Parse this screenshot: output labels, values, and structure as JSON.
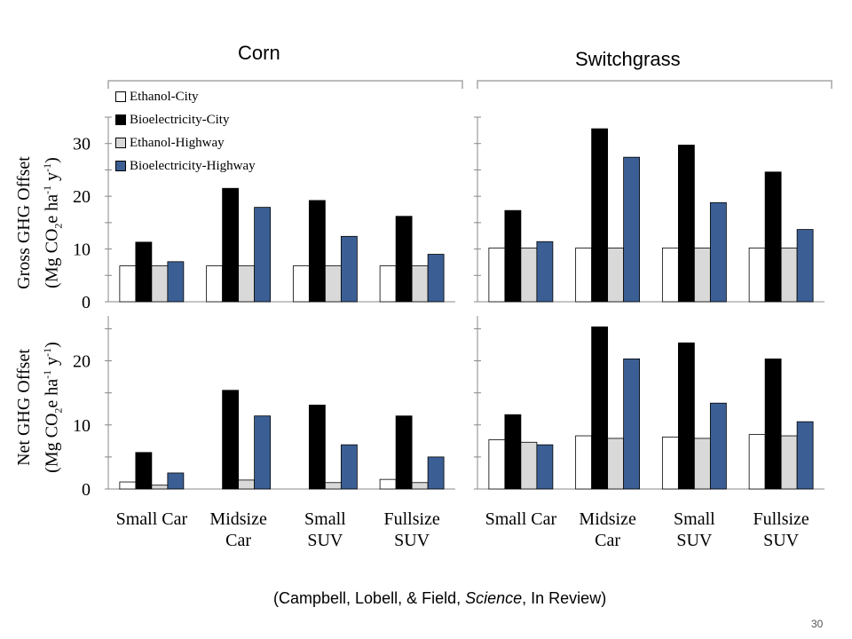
{
  "slide": {
    "group_titles": [
      "Corn",
      "Switchgrass"
    ],
    "citation": {
      "before": "(Campbell, Lobell, & Field, ",
      "italic": "Science",
      "after": ", In Review)"
    },
    "page_number": "30"
  },
  "legend": {
    "entries": [
      {
        "label": "Ethanol-City",
        "color": "#ffffff"
      },
      {
        "label": "Bioelectricity-City",
        "color": "#000000"
      },
      {
        "label": "Ethanol-Highway",
        "color": "#d9d9d9"
      },
      {
        "label": "Bioelectricity-Highway",
        "color": "#3b5f94"
      }
    ]
  },
  "y_labels": {
    "gross": {
      "line1": "Gross GHG Offset",
      "line2_pre": "(Mg CO",
      "sub": "2",
      "mid1": "e ha",
      "sup1": "-1",
      "mid2": " y",
      "sup2": "-1",
      "post": ")"
    },
    "net": {
      "line1": "Net GHG Offset",
      "line2_pre": "(Mg CO",
      "sub": "2",
      "mid1": "e ha",
      "sup1": "-1",
      "mid2": " y",
      "sup2": "-1",
      "post": ")"
    }
  },
  "chart_data": [
    {
      "type": "bar",
      "panel": "corn-gross",
      "group": "Corn",
      "categories": [
        [
          "Small Car"
        ],
        [
          "Midsize",
          "Car"
        ],
        [
          "Small",
          "SUV"
        ],
        [
          "Fullsize",
          "SUV"
        ]
      ],
      "series": [
        {
          "name": "Ethanol-City",
          "color": "#ffffff",
          "values": [
            6.8,
            6.8,
            6.8,
            6.8
          ]
        },
        {
          "name": "Bioelectricity-City",
          "color": "#000000",
          "values": [
            11.3,
            21.5,
            19.2,
            16.2
          ]
        },
        {
          "name": "Ethanol-Highway",
          "color": "#d9d9d9",
          "values": [
            6.8,
            6.8,
            6.8,
            6.8
          ]
        },
        {
          "name": "Bioelectricity-Highway",
          "color": "#3b5f94",
          "values": [
            7.6,
            17.9,
            12.4,
            9.0
          ]
        }
      ],
      "ylim": [
        0,
        35
      ],
      "yticks": [
        0,
        10,
        20,
        30
      ],
      "minor_step": 5,
      "show_tick_labels": true,
      "show_categories": false
    },
    {
      "type": "bar",
      "panel": "switchgrass-gross",
      "group": "Switchgrass",
      "categories": [
        [
          "Small Car"
        ],
        [
          "Midsize",
          "Car"
        ],
        [
          "Small",
          "SUV"
        ],
        [
          "Fullsize",
          "SUV"
        ]
      ],
      "series": [
        {
          "name": "Ethanol-City",
          "color": "#ffffff",
          "values": [
            10.2,
            10.2,
            10.2,
            10.2
          ]
        },
        {
          "name": "Bioelectricity-City",
          "color": "#000000",
          "values": [
            17.3,
            32.8,
            29.7,
            24.6
          ]
        },
        {
          "name": "Ethanol-Highway",
          "color": "#d9d9d9",
          "values": [
            10.2,
            10.2,
            10.2,
            10.2
          ]
        },
        {
          "name": "Bioelectricity-Highway",
          "color": "#3b5f94",
          "values": [
            11.4,
            27.4,
            18.8,
            13.7
          ]
        }
      ],
      "ylim": [
        0,
        35
      ],
      "yticks": [
        0,
        10,
        20,
        30
      ],
      "minor_step": 5,
      "show_tick_labels": false,
      "show_categories": false
    },
    {
      "type": "bar",
      "panel": "corn-net",
      "group": "Corn",
      "categories": [
        [
          "Small Car"
        ],
        [
          "Midsize",
          "Car"
        ],
        [
          "Small",
          "SUV"
        ],
        [
          "Fullsize",
          "SUV"
        ]
      ],
      "series": [
        {
          "name": "Ethanol-City",
          "color": "#ffffff",
          "values": [
            1.1,
            0,
            0,
            1.5
          ]
        },
        {
          "name": "Bioelectricity-City",
          "color": "#000000",
          "values": [
            5.7,
            15.4,
            13.1,
            11.4
          ]
        },
        {
          "name": "Ethanol-Highway",
          "color": "#d9d9d9",
          "values": [
            0.6,
            1.4,
            1.0,
            1.0
          ]
        },
        {
          "name": "Bioelectricity-Highway",
          "color": "#3b5f94",
          "values": [
            2.5,
            11.4,
            6.9,
            5.0
          ]
        }
      ],
      "ylim": [
        0,
        27
      ],
      "yticks": [
        0,
        10,
        20
      ],
      "minor_step": 5,
      "show_tick_labels": true,
      "show_categories": true
    },
    {
      "type": "bar",
      "panel": "switchgrass-net",
      "group": "Switchgrass",
      "categories": [
        [
          "Small Car"
        ],
        [
          "Midsize",
          "Car"
        ],
        [
          "Small",
          "SUV"
        ],
        [
          "Fullsize",
          "SUV"
        ]
      ],
      "series": [
        {
          "name": "Ethanol-City",
          "color": "#ffffff",
          "values": [
            7.7,
            8.3,
            8.1,
            8.5
          ]
        },
        {
          "name": "Bioelectricity-City",
          "color": "#000000",
          "values": [
            11.6,
            25.3,
            22.8,
            20.3
          ]
        },
        {
          "name": "Ethanol-Highway",
          "color": "#d9d9d9",
          "values": [
            7.3,
            7.9,
            7.9,
            8.3
          ]
        },
        {
          "name": "Bioelectricity-Highway",
          "color": "#3b5f94",
          "values": [
            6.9,
            20.3,
            13.4,
            10.5
          ]
        }
      ],
      "ylim": [
        0,
        27
      ],
      "yticks": [
        0,
        10,
        20
      ],
      "minor_step": 5,
      "show_tick_labels": false,
      "show_categories": true
    }
  ]
}
